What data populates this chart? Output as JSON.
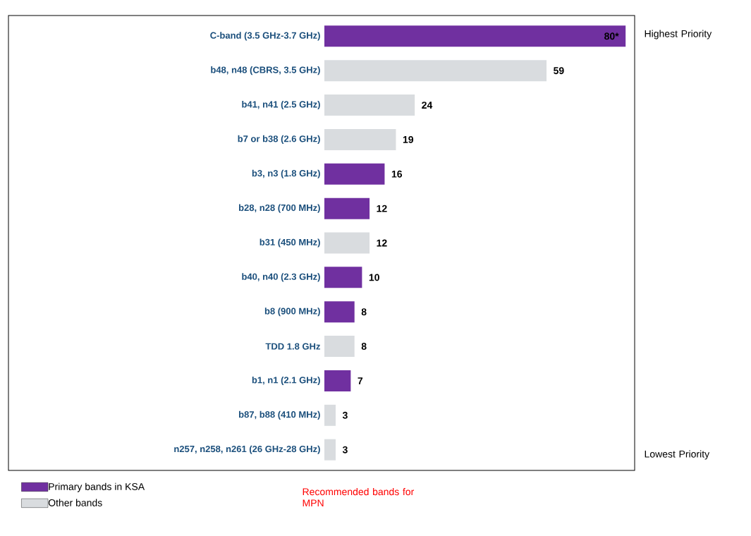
{
  "chart_data": {
    "type": "bar",
    "orientation": "horizontal",
    "stacked": true,
    "categories": [
      "C-band (3.5 GHz-3.7 GHz)",
      "b48, n48 (CBRS, 3.5 GHz)",
      "b41, n41 (2.5 GHz)",
      "b7 or b38 (2.6 GHz)",
      "b3, n3 (1.8 GHz)",
      "b28, n28 (700 MHz)",
      "b31 (450 MHz)",
      "b40, n40 (2.3 GHz)",
      "b8 (900 MHz)",
      "TDD 1.8 GHz",
      "b1, n1 (2.1 GHz)",
      "b87, b88 (410 MHz)",
      "n257, n258, n261 (26 GHz-28 GHz)"
    ],
    "series": [
      {
        "name": "Primary bands in KSA",
        "color": "#7030a0",
        "values": [
          80,
          null,
          null,
          null,
          16,
          12,
          null,
          10,
          8,
          null,
          7,
          null,
          null
        ],
        "value_labels": [
          "80*",
          null,
          null,
          null,
          "16",
          "12",
          null,
          "10",
          "8",
          null,
          "7",
          null,
          null
        ]
      },
      {
        "name": "Other bands",
        "color": "#d9dcdf",
        "values": [
          null,
          59,
          24,
          19,
          null,
          null,
          12,
          null,
          null,
          8,
          null,
          3,
          3
        ],
        "value_labels": [
          null,
          "59",
          "24",
          "19",
          null,
          null,
          "12",
          null,
          null,
          "8",
          null,
          "3",
          "3"
        ]
      }
    ],
    "xlim": [
      0,
      82.4
    ],
    "tick_labels": "y",
    "legend": "bottom left",
    "annotations": [
      "Highest Priority",
      "Lowest Priority",
      "Recommended bands for MPN"
    ]
  }
}
